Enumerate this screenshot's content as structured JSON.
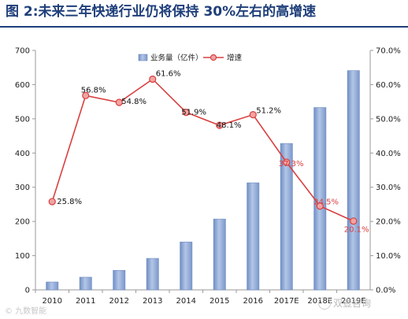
{
  "title": "图 2:未来三年快递行业仍将保持 30%左右的高增速",
  "chart_data": {
    "type": "bar",
    "categories": [
      "2010",
      "2011",
      "2012",
      "2013",
      "2014",
      "2015",
      "2016",
      "2017E",
      "2018E",
      "2019E"
    ],
    "series": [
      {
        "name": "业务量（亿件）",
        "type": "bar",
        "axis": "left",
        "color": "#8eaad6",
        "values": [
          23,
          37,
          57,
          92,
          140,
          207,
          313,
          428,
          533,
          641
        ]
      },
      {
        "name": "增速",
        "type": "line",
        "axis": "right",
        "color": "#d94040",
        "values": [
          25.8,
          56.8,
          54.8,
          61.6,
          51.9,
          48.1,
          51.2,
          37.3,
          24.5,
          20.1
        ],
        "labels": [
          "25.8%",
          "56.8%",
          "54.8%",
          "61.6%",
          "51.9%",
          "48.1%",
          "51.2%",
          "37.3%",
          "24.5%",
          "20.1%"
        ]
      }
    ],
    "left_axis": {
      "ylim": [
        0,
        700
      ],
      "ticks": [
        "0",
        "100",
        "200",
        "300",
        "400",
        "500",
        "600",
        "700"
      ]
    },
    "right_axis": {
      "ylim": [
        0,
        70
      ],
      "ticks": [
        "0.0%",
        "10.0%",
        "20.0%",
        "30.0%",
        "40.0%",
        "50.0%",
        "60.0%",
        "70.0%"
      ]
    },
    "grid": false,
    "legend": "top-center"
  },
  "watermarks": {
    "left": "© 九数智能",
    "right": "双壹咨询"
  }
}
